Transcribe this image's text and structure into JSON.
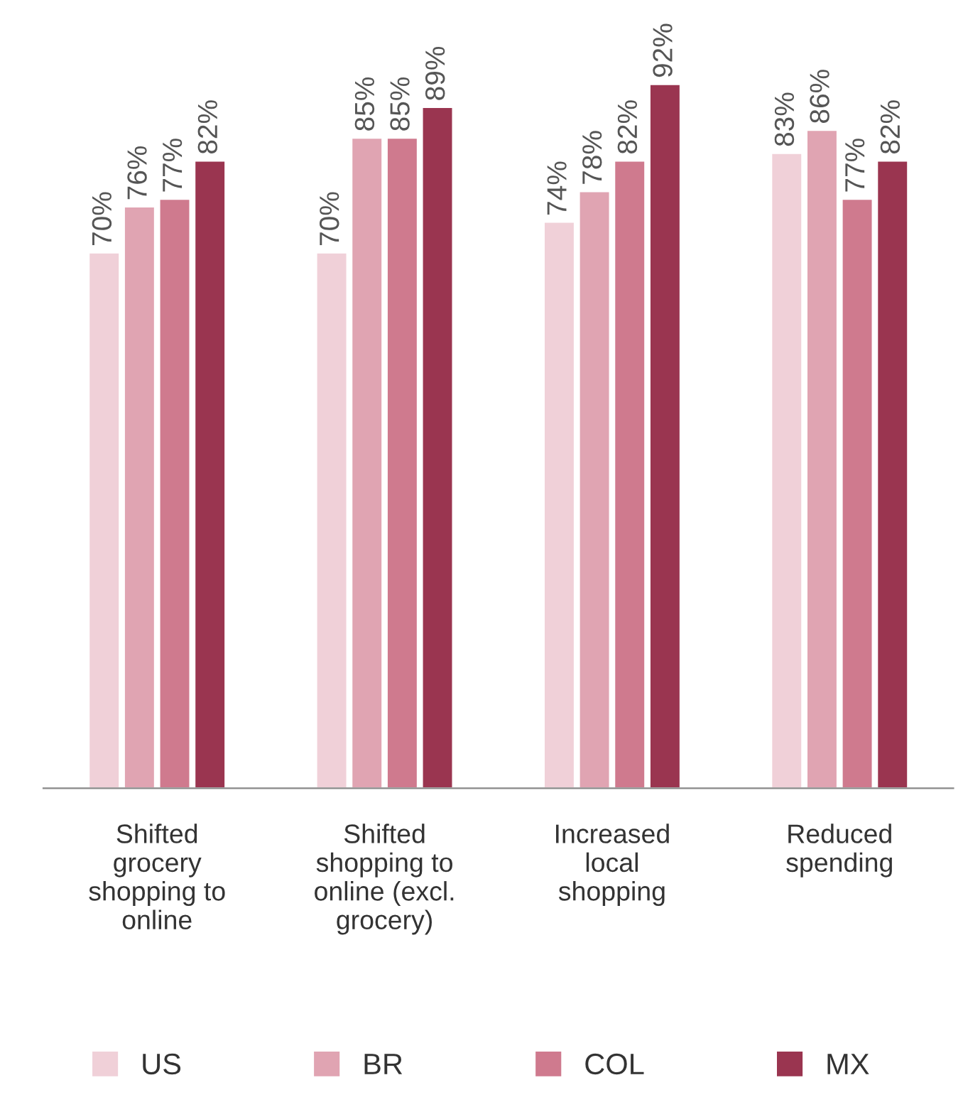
{
  "chart_data": {
    "type": "bar",
    "categories": [
      "Shifted\ngrocery\nshopping to\nonline",
      "Shifted\nshopping to\nonline (excl.\ngrocery)",
      "Increased\nlocal\nshopping",
      "Reduced\nspending"
    ],
    "series": [
      {
        "name": "US",
        "color": "#f0d0d8",
        "values": [
          70,
          70,
          74,
          83
        ],
        "value_labels": [
          "70%",
          "70%",
          "74%",
          "83%"
        ]
      },
      {
        "name": "BR",
        "color": "#e0a4b2",
        "values": [
          76,
          85,
          78,
          86
        ],
        "value_labels": [
          "76%",
          "85%",
          "78%",
          "86%"
        ]
      },
      {
        "name": "COL",
        "color": "#cf7a8e",
        "values": [
          77,
          85,
          82,
          77
        ],
        "value_labels": [
          "77%",
          "85%",
          "82%",
          "77%"
        ]
      },
      {
        "name": "MX",
        "color": "#9a3550",
        "values": [
          82,
          89,
          92,
          82
        ],
        "value_labels": [
          "82%",
          "89%",
          "92%",
          "82%"
        ]
      }
    ],
    "legend": "bottom",
    "grid": false
  }
}
